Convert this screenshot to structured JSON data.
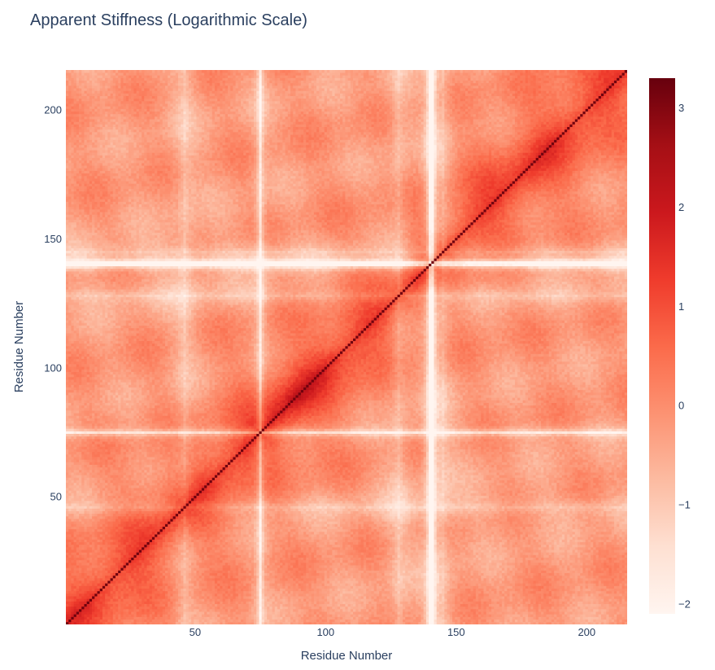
{
  "chart_data": {
    "type": "heatmap",
    "title": "Apparent Stiffness (Logarithmic Scale)",
    "xlabel": "Residue Number",
    "ylabel": "Residue Number",
    "xlim": [
      1,
      215
    ],
    "ylim": [
      1,
      215
    ],
    "x_ticks": [
      50,
      100,
      150,
      200
    ],
    "y_ticks": [
      50,
      100,
      150,
      200
    ],
    "colorbar": {
      "range": [
        -2.1,
        3.3
      ],
      "ticks": [
        3,
        2,
        1,
        0,
        -1,
        -2
      ],
      "colorscale": [
        "#fff5f0",
        "#fee0d2",
        "#fcbba1",
        "#fc9272",
        "#fb6a4a",
        "#ef3b2c",
        "#cb181d",
        "#a50f15",
        "#67000d"
      ]
    },
    "structure": {
      "diagonal_value": 3.2,
      "background_value": -0.2,
      "near_diagonal_value": 1.6,
      "near_diagonal_decay": 18,
      "low_stiffness_residues": [
        75,
        140,
        141
      ],
      "weak_band_residues": [
        128,
        145,
        46
      ],
      "stiff_region": {
        "center": [
          88,
          88
        ],
        "value": 2.2
      }
    }
  }
}
